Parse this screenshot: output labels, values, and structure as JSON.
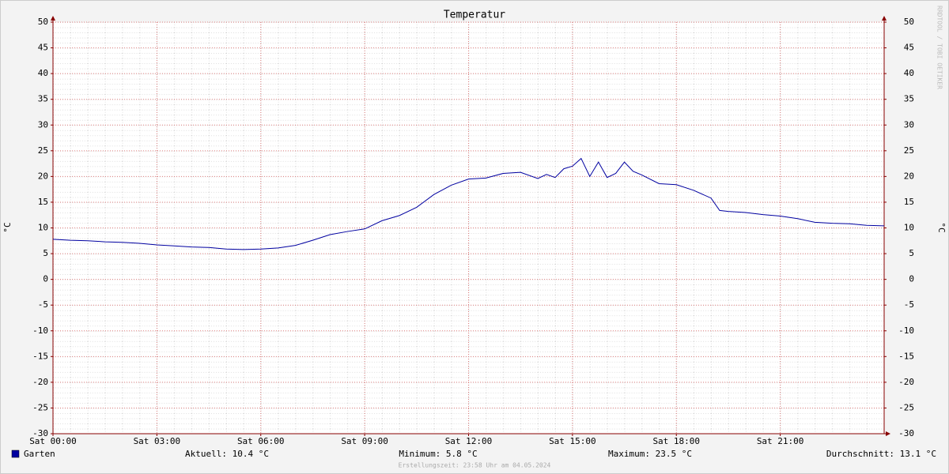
{
  "chart_data": {
    "type": "line",
    "title": "Temperatur",
    "y_label": "°C",
    "watermark": "RRDTOOL / TOBI OETIKER",
    "footer": "Erstellungszeit: 23:58 Uhr am 04.05.2024",
    "x": [
      0,
      0.5,
      1,
      1.5,
      2,
      2.5,
      3,
      3.5,
      4,
      4.5,
      5,
      5.5,
      6,
      6.5,
      7,
      7.5,
      8,
      8.5,
      9,
      9.5,
      10,
      10.5,
      11,
      11.5,
      12,
      12.5,
      13,
      13.5,
      14,
      14.25,
      14.5,
      14.75,
      15,
      15.25,
      15.5,
      15.75,
      16,
      16.25,
      16.5,
      16.75,
      17,
      17.5,
      18,
      18.5,
      19,
      19.25,
      19.5,
      20,
      20.5,
      21,
      21.5,
      22,
      22.5,
      23,
      23.5,
      24
    ],
    "series": [
      {
        "name": "Garten",
        "color": "#0000a0",
        "values": [
          7.8,
          7.6,
          7.5,
          7.3,
          7.2,
          7.0,
          6.7,
          6.5,
          6.3,
          6.2,
          5.9,
          5.8,
          5.9,
          6.1,
          6.6,
          7.6,
          8.7,
          9.3,
          9.8,
          11.4,
          12.4,
          14.0,
          16.5,
          18.3,
          19.5,
          19.7,
          20.6,
          20.8,
          19.6,
          20.4,
          19.8,
          21.5,
          22.0,
          23.5,
          20.0,
          22.8,
          19.8,
          20.6,
          22.8,
          21.0,
          20.3,
          18.6,
          18.4,
          17.3,
          15.8,
          13.4,
          13.2,
          13.0,
          12.6,
          12.3,
          11.8,
          11.1,
          10.9,
          10.8,
          10.5,
          10.4
        ]
      }
    ],
    "xlim": [
      0,
      24
    ],
    "xticks": [
      {
        "value": 0,
        "label": "Sat 00:00"
      },
      {
        "value": 3,
        "label": "Sat 03:00"
      },
      {
        "value": 6,
        "label": "Sat 06:00"
      },
      {
        "value": 9,
        "label": "Sat 09:00"
      },
      {
        "value": 12,
        "label": "Sat 12:00"
      },
      {
        "value": 15,
        "label": "Sat 15:00"
      },
      {
        "value": 18,
        "label": "Sat 18:00"
      },
      {
        "value": 21,
        "label": "Sat 21:00"
      }
    ],
    "ylim": [
      -30,
      50
    ],
    "yticks": [
      -30,
      -25,
      -20,
      -15,
      -10,
      -5,
      0,
      5,
      10,
      15,
      20,
      25,
      30,
      35,
      40,
      45,
      50
    ],
    "grid": true,
    "stats": [
      "Aktuell: 10.4 °C",
      "Minimum: 5.8 °C",
      "Maximum: 23.5 °C",
      "Durchschnitt: 13.1 °C"
    ]
  }
}
